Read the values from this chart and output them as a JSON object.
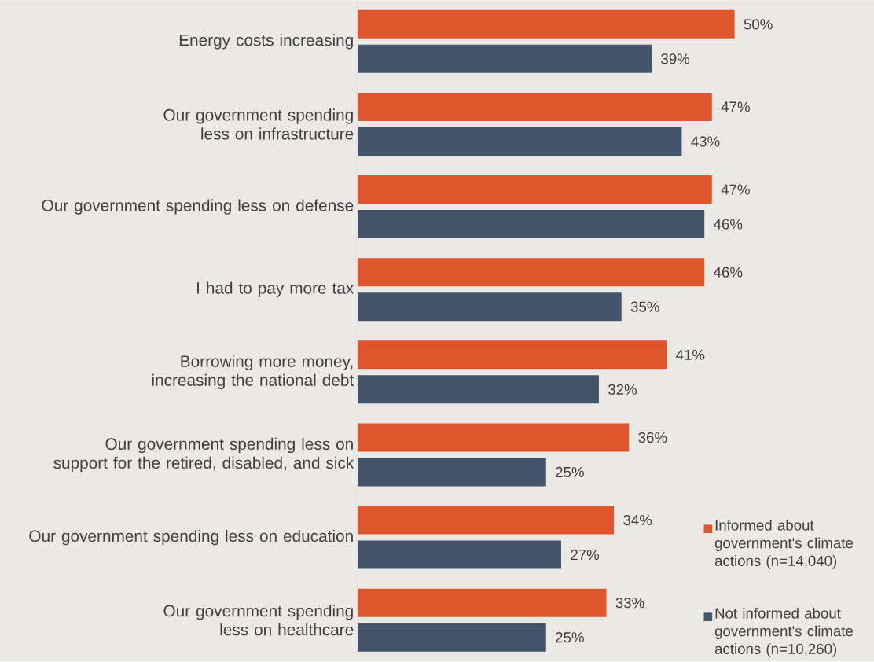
{
  "chart_data": {
    "type": "bar",
    "orientation": "horizontal",
    "tick_labels": "y",
    "grid": false,
    "legend": "bottom right",
    "categories": [
      "Energy costs increasing",
      "Our government spending less on infrastructure",
      "Our government spending less on defense",
      "I had to pay more tax",
      "Borrowing more money, increasing the national debt",
      "Our government spending less on support for the retired, disabled, and sick",
      "Our government spending less on education",
      "Our government spending less on healthcare"
    ],
    "series": [
      {
        "name": "Informed about government's climate actions (n=14,040)",
        "color": "#e0562c",
        "values": [
          50,
          47,
          47,
          46,
          41,
          36,
          34,
          33
        ],
        "value_labels": [
          "50%",
          "47%",
          "47%",
          "46%",
          "41%",
          "36%",
          "34%",
          "33%"
        ]
      },
      {
        "name": "Not informed about government's climate actions (n=10,260)",
        "color": "#44546a",
        "values": [
          39,
          43,
          46,
          35,
          32,
          25,
          27,
          25
        ],
        "value_labels": [
          "39%",
          "43%",
          "46%",
          "35%",
          "32%",
          "25%",
          "27%",
          "25%"
        ]
      }
    ]
  }
}
